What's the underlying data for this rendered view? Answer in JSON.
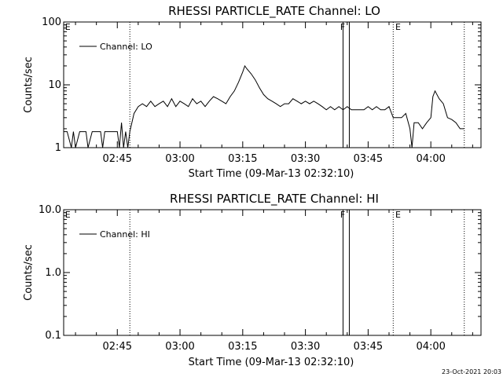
{
  "footer_date": "23-Oct-2021 20:03",
  "chart_data": [
    {
      "type": "line",
      "title": "RHESSI PARTICLE_RATE Channel: LO",
      "xlabel": "Start Time (09-Mar-13 02:32:10)",
      "ylabel": "Counts/sec",
      "yscale": "log",
      "ylim": [
        1,
        100
      ],
      "yticks": [
        "1",
        "10",
        "100"
      ],
      "xlim": [
        "02:32:10",
        "04:12:00"
      ],
      "xticks": [
        "02:45",
        "03:00",
        "03:15",
        "03:30",
        "03:45",
        "04:00"
      ],
      "legend": "top-left",
      "grid": false,
      "markers": {
        "dotted": [
          "02:48:00",
          "03:51:00",
          "04:08:00"
        ],
        "solid": [
          "03:39:00",
          "03:40:30"
        ],
        "letters": [
          {
            "t": "02:32:30",
            "text": "E"
          },
          {
            "t": "03:38:20",
            "text": "F"
          },
          {
            "t": "03:51:30",
            "text": "E"
          }
        ]
      },
      "series": [
        {
          "name": "Channel: LO",
          "t": [
            "02:32:10",
            "02:33:00",
            "02:34:00",
            "02:34:30",
            "02:35:00",
            "02:36:00",
            "02:37:00",
            "02:37:30",
            "02:38:00",
            "02:39:00",
            "02:40:00",
            "02:41:00",
            "02:41:30",
            "02:42:00",
            "02:43:00",
            "02:44:00",
            "02:45:00",
            "02:45:30",
            "02:46:00",
            "02:46:30",
            "02:47:00",
            "02:47:30",
            "02:48:00",
            "02:49:00",
            "02:50:00",
            "02:51:00",
            "02:52:00",
            "02:53:00",
            "02:54:00",
            "02:55:00",
            "02:56:00",
            "02:57:00",
            "02:58:00",
            "02:59:00",
            "03:00:00",
            "03:01:00",
            "03:02:00",
            "03:03:00",
            "03:04:00",
            "03:05:00",
            "03:06:00",
            "03:07:00",
            "03:08:00",
            "03:09:00",
            "03:10:00",
            "03:11:00",
            "03:12:00",
            "03:13:00",
            "03:14:00",
            "03:15:00",
            "03:15:30",
            "03:16:00",
            "03:17:00",
            "03:18:00",
            "03:19:00",
            "03:20:00",
            "03:21:00",
            "03:22:00",
            "03:23:00",
            "03:24:00",
            "03:25:00",
            "03:26:00",
            "03:27:00",
            "03:28:00",
            "03:29:00",
            "03:30:00",
            "03:31:00",
            "03:32:00",
            "03:33:00",
            "03:34:00",
            "03:35:00",
            "03:36:00",
            "03:37:00",
            "03:38:00",
            "03:39:00",
            "03:40:00",
            "03:41:00",
            "03:42:00",
            "03:43:00",
            "03:44:00",
            "03:45:00",
            "03:46:00",
            "03:47:00",
            "03:48:00",
            "03:49:00",
            "03:50:00",
            "03:51:00",
            "03:52:00",
            "03:53:00",
            "03:54:00",
            "03:55:00",
            "03:55:30",
            "03:56:00",
            "03:57:00",
            "03:58:00",
            "03:59:00",
            "04:00:00",
            "04:00:30",
            "04:01:00",
            "04:02:00",
            "04:03:00",
            "04:04:00",
            "04:05:00",
            "04:06:00",
            "04:07:00",
            "04:08:00"
          ],
          "y": [
            1.8,
            1.8,
            1.0,
            1.8,
            1.0,
            1.8,
            1.8,
            1.8,
            1.0,
            1.8,
            1.8,
            1.8,
            1.0,
            1.8,
            1.8,
            1.8,
            1.8,
            1.0,
            2.5,
            1.0,
            1.8,
            1.0,
            1.8,
            3.5,
            4.5,
            5.0,
            4.5,
            5.5,
            4.5,
            5.0,
            5.5,
            4.5,
            6.0,
            4.5,
            5.5,
            5.0,
            4.5,
            6.0,
            5.0,
            5.5,
            4.5,
            5.5,
            6.5,
            6.0,
            5.5,
            5.0,
            6.5,
            8.0,
            11.0,
            16.0,
            20.0,
            18.0,
            15.0,
            12.0,
            9.0,
            7.0,
            6.0,
            5.5,
            5.0,
            4.5,
            5.0,
            5.0,
            6.0,
            5.5,
            5.0,
            5.5,
            5.0,
            5.5,
            5.0,
            4.5,
            4.0,
            4.5,
            4.0,
            4.5,
            4.0,
            4.5,
            4.0,
            4.0,
            4.0,
            4.0,
            4.5,
            4.0,
            4.5,
            4.0,
            4.0,
            4.5,
            3.0,
            3.0,
            3.0,
            3.5,
            2.0,
            1.0,
            2.5,
            2.5,
            2.0,
            2.5,
            3.0,
            6.5,
            8.0,
            6.0,
            5.0,
            3.0,
            2.8,
            2.5,
            2.0,
            2.0
          ]
        }
      ]
    },
    {
      "type": "line",
      "title": "RHESSI PARTICLE_RATE Channel: HI",
      "xlabel": "Start Time (09-Mar-13 02:32:10)",
      "ylabel": "Counts/sec",
      "yscale": "log",
      "ylim": [
        0.1,
        10.0
      ],
      "yticks": [
        "0.1",
        "1.0",
        "10.0"
      ],
      "xlim": [
        "02:32:10",
        "04:12:00"
      ],
      "xticks": [
        "02:45",
        "03:00",
        "03:15",
        "03:30",
        "03:45",
        "04:00"
      ],
      "legend": "top-left",
      "grid": false,
      "markers": {
        "dotted": [
          "02:48:00",
          "03:51:00",
          "04:08:00"
        ],
        "solid": [
          "03:39:00",
          "03:40:30"
        ],
        "letters": [
          {
            "t": "02:32:30",
            "text": "E"
          },
          {
            "t": "03:38:20",
            "text": "F"
          },
          {
            "t": "03:51:30",
            "text": "E"
          }
        ]
      },
      "series": [
        {
          "name": "Channel: HI",
          "t": [],
          "y": []
        }
      ]
    }
  ]
}
